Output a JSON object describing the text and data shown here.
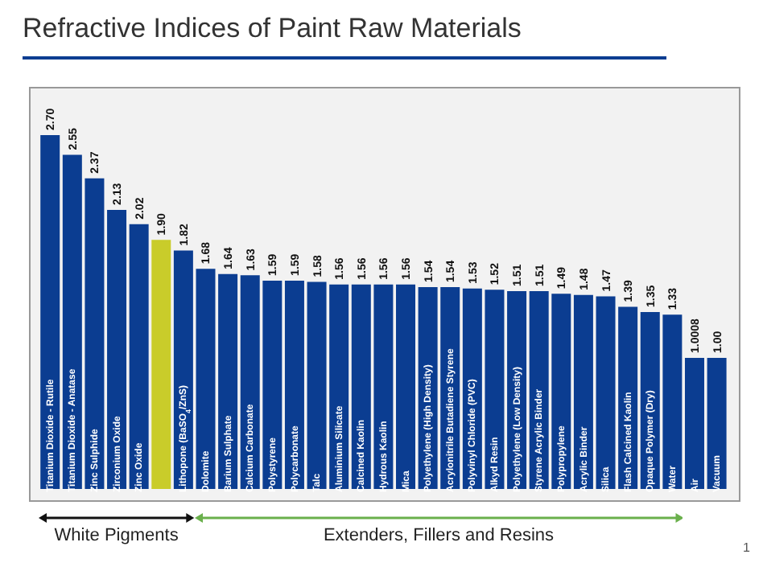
{
  "chart_data": {
    "type": "bar",
    "title": "Refractive Indices of Paint Raw Materials",
    "categories": [
      "Titanium Dioxide - Rutile",
      "Titanium Dioxide - Anatase",
      "Zinc Sulphide",
      "Zirconium Oxide",
      "Zinc Oxide",
      null,
      "Lithopone (BaSO$_{4}$/ZnS)",
      "Dolomite",
      "Barium Sulphate",
      "Calcium Carbonate",
      "Polystyrene",
      "Polycarbonate",
      "Talc",
      "Aluminium Silicate",
      "Calcined Kaolin",
      "Hydrous Kaolin",
      "Mica",
      "Polyethylene (High Density)",
      "Acrylonitrile Butadiene Styrene",
      "Polyvinyl Chloride (PVC)",
      "Alkyd Resin",
      "Polyethylene (Low Density)",
      "Styrene Acrylic Binder",
      "Polypropylene",
      "Acrylic Binder",
      "Silica",
      "Flash Calcined Kaolin",
      "Opaque Polymer (Dry)",
      "Water",
      "Air",
      "Vacuum"
    ],
    "values": [
      2.7,
      2.55,
      2.37,
      2.13,
      2.02,
      1.9,
      1.82,
      1.68,
      1.64,
      1.63,
      1.59,
      1.59,
      1.58,
      1.56,
      1.56,
      1.56,
      1.56,
      1.54,
      1.54,
      1.53,
      1.52,
      1.51,
      1.51,
      1.49,
      1.48,
      1.47,
      1.39,
      1.35,
      1.33,
      1.0008,
      1.0
    ],
    "value_labels": [
      "2.70",
      "2.55",
      "2.37",
      "2.13",
      "2.02",
      "1.90",
      "1.82",
      "1.68",
      "1.64",
      "1.63",
      "1.59",
      "1.59",
      "1.58",
      "1.56",
      "1.56",
      "1.56",
      "1.56",
      "1.54",
      "1.54",
      "1.53",
      "1.52",
      "1.51",
      "1.51",
      "1.49",
      "1.48",
      "1.47",
      "1.39",
      "1.35",
      "1.33",
      "1.0008",
      "1.00"
    ],
    "colors": [
      "#0b3d91",
      "#0b3d91",
      "#0b3d91",
      "#0b3d91",
      "#0b3d91",
      "#c9cc2a",
      "#0b3d91",
      "#0b3d91",
      "#0b3d91",
      "#0b3d91",
      "#0b3d91",
      "#0b3d91",
      "#0b3d91",
      "#0b3d91",
      "#0b3d91",
      "#0b3d91",
      "#0b3d91",
      "#0b3d91",
      "#0b3d91",
      "#0b3d91",
      "#0b3d91",
      "#0b3d91",
      "#0b3d91",
      "#0b3d91",
      "#0b3d91",
      "#0b3d91",
      "#0b3d91",
      "#0b3d91",
      "#0b3d91",
      "#0b3d91",
      "#0b3d91"
    ],
    "grid": false,
    "legend": false,
    "annotations": [
      "White Pigments",
      "Extenders, Fillers and Resins",
      "1"
    ]
  }
}
